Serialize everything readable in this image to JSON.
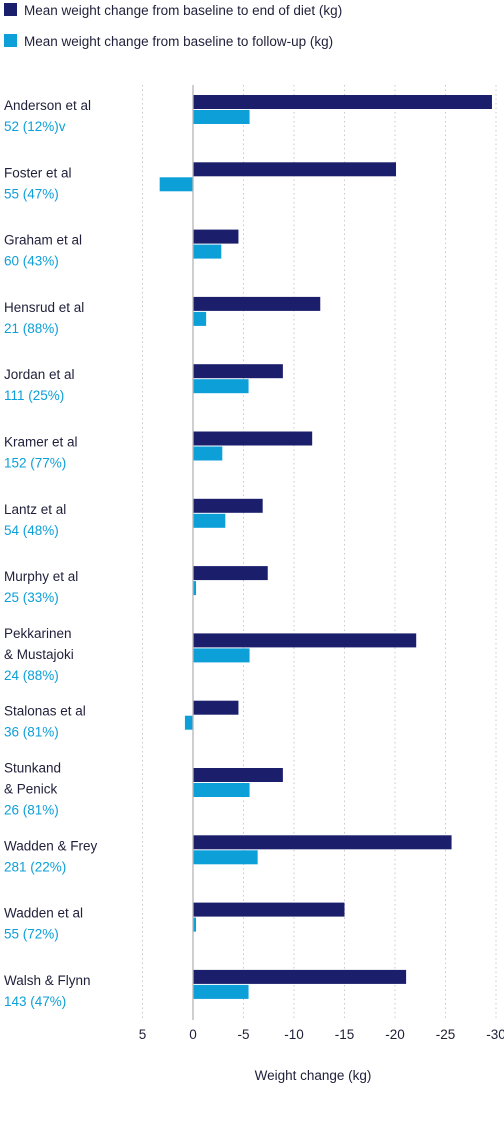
{
  "colors": {
    "end_of_diet": "#1b1f6b",
    "follow_up": "#0c9fd8",
    "grid": "#c9c9c9",
    "axis": "#b5b5b5",
    "text": "#1f1f3a"
  },
  "chart_data": {
    "type": "bar",
    "orientation": "horizontal",
    "xlabel": "Weight change (kg)",
    "xlim": [
      5,
      -30
    ],
    "xticks": [
      5,
      0,
      -5,
      -10,
      -15,
      -20,
      -25,
      -30
    ],
    "tick_labels": [
      "5",
      "0",
      "-5",
      "-10",
      "-15",
      "-20",
      "-25",
      "-30"
    ],
    "grid": true,
    "legend": "top-left",
    "series": [
      {
        "name": "Mean weight change from baseline to end of diet (kg)",
        "color_key": "end_of_diet",
        "values": [
          -29.6,
          -20.1,
          -4.5,
          -12.6,
          -8.9,
          -11.8,
          -6.9,
          -7.4,
          -22.1,
          -4.5,
          -8.9,
          -25.6,
          -15.0,
          -21.1
        ]
      },
      {
        "name": "Mean weight change from baseline to follow-up (kg)",
        "color_key": "follow_up",
        "values": [
          -5.6,
          3.3,
          -2.8,
          -1.3,
          -5.5,
          -2.9,
          -3.2,
          -0.3,
          -5.6,
          0.8,
          -5.6,
          -6.4,
          -0.3,
          -5.5
        ]
      }
    ],
    "categories": [
      {
        "name_lines": [
          "Anderson et al"
        ],
        "n": "52 (12%)v"
      },
      {
        "name_lines": [
          "Foster et al"
        ],
        "n": "55 (47%)"
      },
      {
        "name_lines": [
          "Graham et al"
        ],
        "n": "60 (43%)"
      },
      {
        "name_lines": [
          "Hensrud et al"
        ],
        "n": "21 (88%)"
      },
      {
        "name_lines": [
          "Jordan et al"
        ],
        "n": "111 (25%)"
      },
      {
        "name_lines": [
          "Kramer et al"
        ],
        "n": "152 (77%)"
      },
      {
        "name_lines": [
          "Lantz et al"
        ],
        "n": "54 (48%)"
      },
      {
        "name_lines": [
          "Murphy et al"
        ],
        "n": "25 (33%)"
      },
      {
        "name_lines": [
          "Pekkarinen",
          "& Mustajoki"
        ],
        "n": "24 (88%)"
      },
      {
        "name_lines": [
          "Stalonas et al"
        ],
        "n": "36 (81%)"
      },
      {
        "name_lines": [
          "Stunkand",
          "& Penick"
        ],
        "n": "26 (81%)"
      },
      {
        "name_lines": [
          "Wadden & Frey"
        ],
        "n": "281 (22%)"
      },
      {
        "name_lines": [
          "Wadden et al"
        ],
        "n": "55 (72%)"
      },
      {
        "name_lines": [
          "Walsh & Flynn"
        ],
        "n": "143 (47%)"
      }
    ]
  }
}
